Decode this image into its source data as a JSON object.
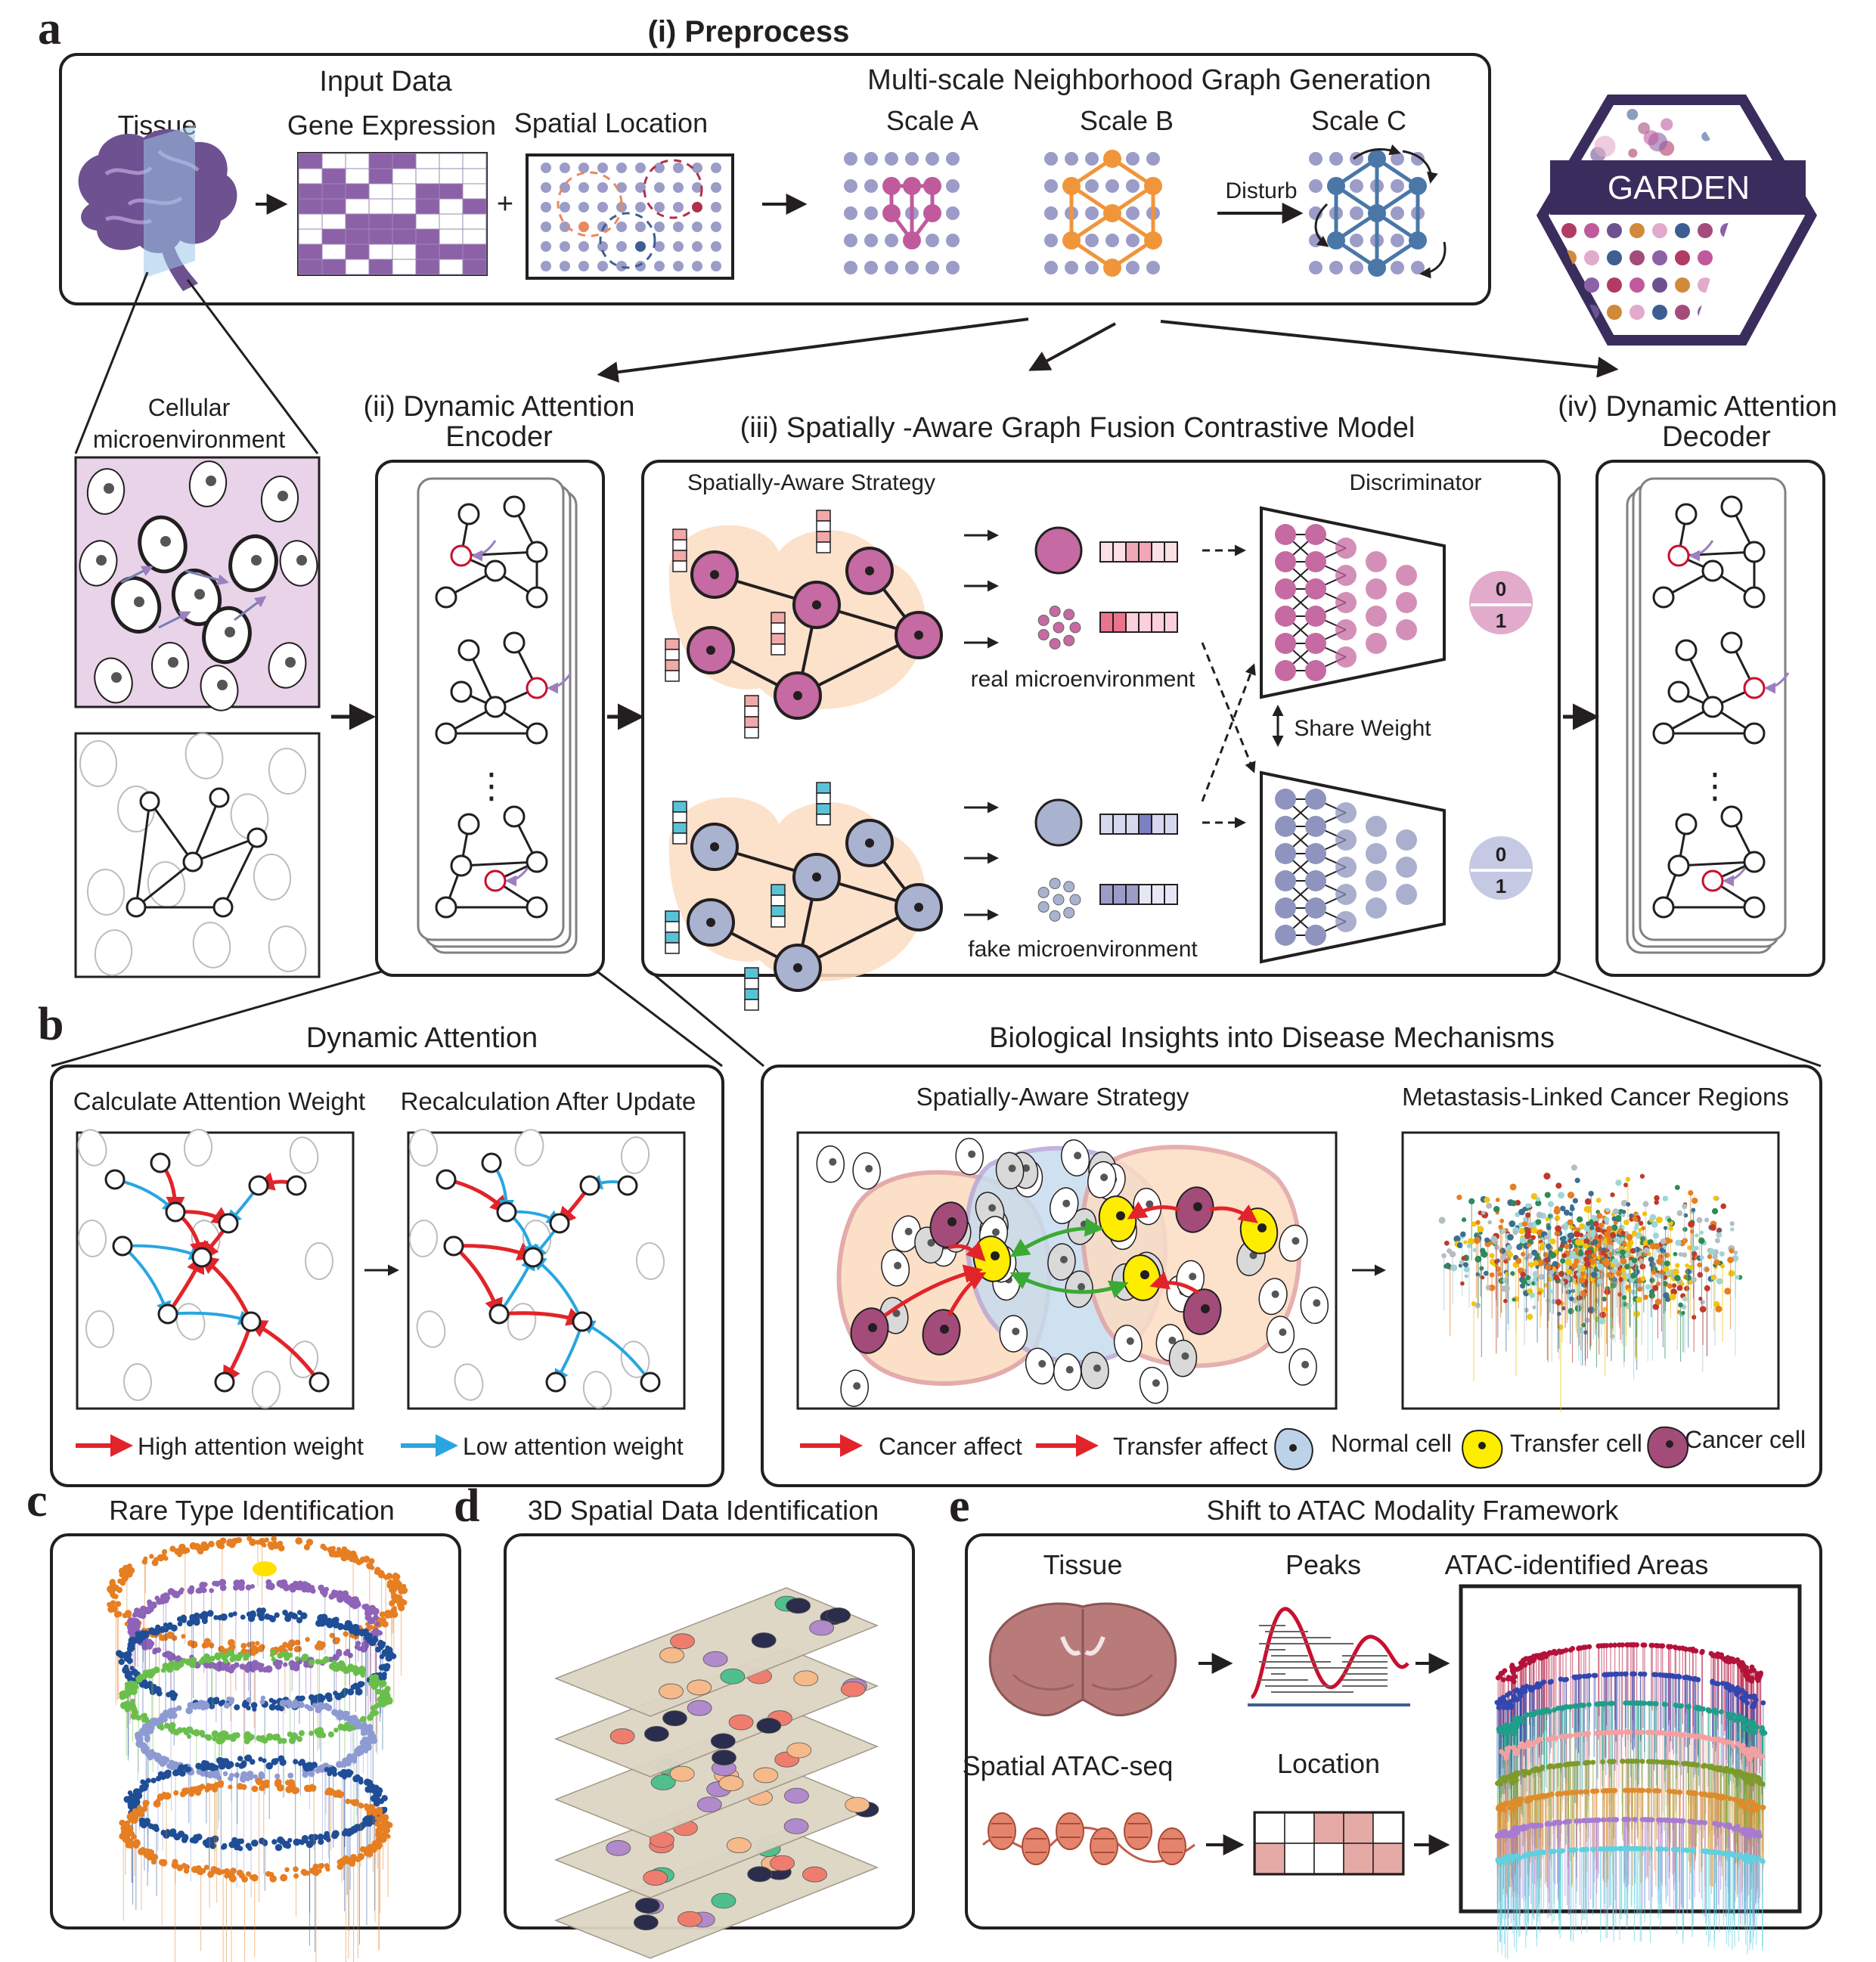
{
  "panels": {
    "a": "a",
    "b": "b",
    "c": "c",
    "d": "d",
    "e": "e"
  },
  "preprocess": {
    "title": "(i) Preprocess",
    "input_data": "Input Data",
    "tissue": "Tissue",
    "gene_expression": "Gene Expression",
    "spatial_location": "Spatial Location",
    "plus": "+",
    "multiscale_title": "Multi-scale Neighborhood Graph Generation",
    "scale_a": "Scale   A",
    "scale_b": "Scale   B",
    "scale_c": "Scale   C",
    "disturb": "Disturb"
  },
  "logo": {
    "label": "GARDEN"
  },
  "micro": {
    "label_line1": "Cellular",
    "label_line2": "microenvironment"
  },
  "encoder": {
    "title_line1": "(ii) Dynamic Attention",
    "title_line2": "Encoder",
    "ellipsis": "⋮"
  },
  "fusion": {
    "title": "(iii) Spatially -Aware Graph Fusion Contrastive Model",
    "strategy": "Spatially-Aware Strategy",
    "discriminator": "Discriminator",
    "real": "real microenvironment",
    "fake": "fake microenvironment",
    "share_weight": "Share Weight",
    "zero": "0",
    "one": "1"
  },
  "decoder": {
    "title_line1": "(iv) Dynamic Attention",
    "title_line2": "Decoder",
    "ellipsis": "⋮"
  },
  "dynamic_attention": {
    "title": "Dynamic Attention",
    "calc": "Calculate Attention Weight",
    "recalc": "Recalculation After Update",
    "high": "High attention weight",
    "low": "Low attention weight"
  },
  "bio": {
    "title": "Biological Insights into Disease Mechanisms",
    "strategy": "Spatially-Aware Strategy",
    "metastasis": "Metastasis-Linked Cancer Regions",
    "cancer_affect": "Cancer affect",
    "transfer_affect": "Transfer affect",
    "normal_cell": "Normal cell",
    "transfer_cell": "Transfer cell",
    "cancer_cell": "Cancer cell"
  },
  "rare": {
    "title": "Rare Type Identification"
  },
  "spatial3d": {
    "title": "3D Spatial Data Identification"
  },
  "atac": {
    "title": "Shift to ATAC Modality Framework",
    "tissue": "Tissue",
    "peaks": "Peaks",
    "areas": "ATAC-identified Areas",
    "seq": "Spatial ATAC-seq",
    "location": "Location"
  },
  "colors": {
    "purple": "#8c61a8",
    "scale_a": "#c05a9c",
    "scale_b": "#f0953a",
    "scale_c": "#4a77a8",
    "dots": "#9b9cc7",
    "red_arrow": "#e2242a",
    "blue_arrow": "#29a6e0",
    "real_node": "#c56aa2",
    "fake_node": "#a9b2cf",
    "transfer_cell": "#ffed00",
    "cancer_cell": "#a34c7a",
    "normal_cell": "#bcd2e8"
  }
}
